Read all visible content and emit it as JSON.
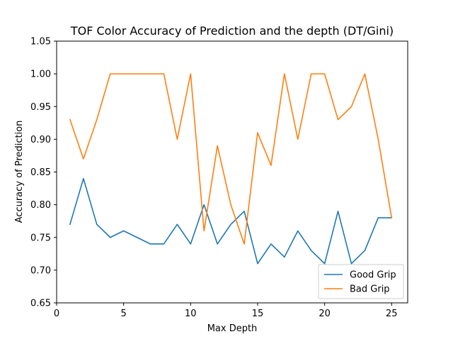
{
  "chart_data": {
    "type": "line",
    "title": "TOF Color Accuracy of Prediction and the depth (DT/Gini)",
    "xlabel": "Max Depth",
    "ylabel": "Accuracy of Prediction",
    "xlim": [
      0,
      26.2
    ],
    "ylim": [
      0.65,
      1.05
    ],
    "xticks": [
      0,
      5,
      10,
      15,
      20,
      25
    ],
    "xtick_labels": [
      "0",
      "5",
      "10",
      "15",
      "20",
      "25"
    ],
    "yticks": [
      0.65,
      0.7,
      0.75,
      0.8,
      0.85,
      0.9,
      0.95,
      1.0,
      1.05
    ],
    "ytick_labels": [
      "0.65",
      "0.70",
      "0.75",
      "0.80",
      "0.85",
      "0.90",
      "0.95",
      "1.00",
      "1.05"
    ],
    "grid": false,
    "legend_position": "bottom-right",
    "x": [
      1,
      2,
      3,
      4,
      5,
      6,
      7,
      8,
      9,
      10,
      11,
      12,
      13,
      14,
      15,
      16,
      17,
      18,
      19,
      20,
      21,
      22,
      23,
      24,
      25
    ],
    "series": [
      {
        "name": "Good Grip",
        "color": "#1f77b4",
        "values": [
          0.77,
          0.84,
          0.77,
          0.75,
          0.76,
          0.75,
          0.74,
          0.74,
          0.77,
          0.74,
          0.8,
          0.74,
          0.77,
          0.79,
          0.71,
          0.74,
          0.72,
          0.76,
          0.73,
          0.71,
          0.79,
          0.71,
          0.73,
          0.78,
          0.78
        ]
      },
      {
        "name": "Bad Grip",
        "color": "#ff7f0e",
        "values": [
          0.93,
          0.87,
          0.93,
          1.0,
          1.0,
          1.0,
          1.0,
          1.0,
          0.9,
          1.0,
          0.76,
          0.89,
          0.8,
          0.74,
          0.91,
          0.86,
          1.0,
          0.9,
          1.0,
          1.0,
          0.93,
          0.95,
          1.0,
          0.9,
          0.78
        ]
      }
    ]
  }
}
